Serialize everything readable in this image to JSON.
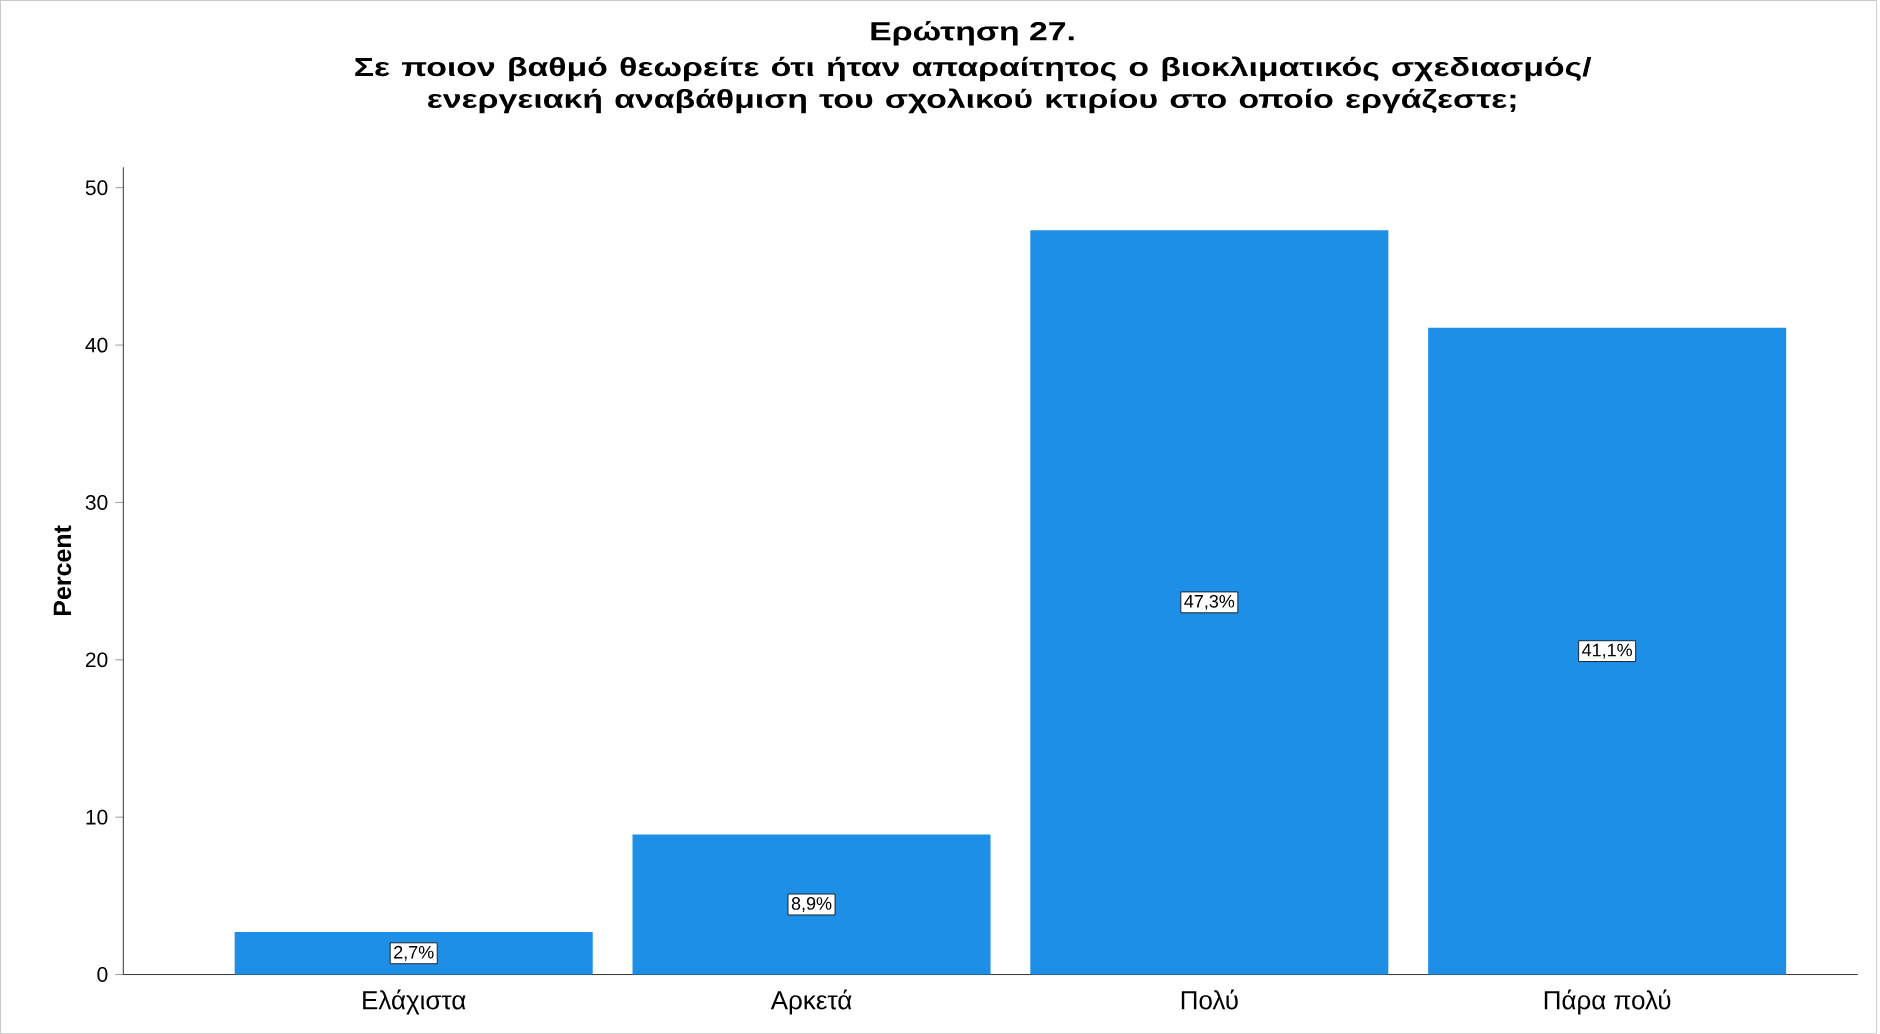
{
  "chart_data": {
    "type": "bar",
    "title": "Ερώτηση 27.",
    "subtitle": "Σε ποιον βαθμό θεωρείτε ότι ήταν απαραίτητος ο βιοκλιματικός σχεδιασμός/ ενεργειακή αναβάθμιση του σχολικού κτιρίου στο οποίο εργάζεστε;",
    "ylabel": "Percent",
    "categories": [
      "Ελάχιστα",
      "Αρκετά",
      "Πολύ",
      "Πάρα πολύ"
    ],
    "values": [
      2.7,
      8.9,
      47.3,
      41.1
    ],
    "value_labels": [
      "2,7%",
      "8,9%",
      "47,3%",
      "41,1%"
    ],
    "color": "#1e8fe6",
    "ylim": [
      0,
      51.3
    ],
    "yticks": [
      0,
      10,
      20,
      30,
      40,
      50
    ],
    "grid": false
  }
}
